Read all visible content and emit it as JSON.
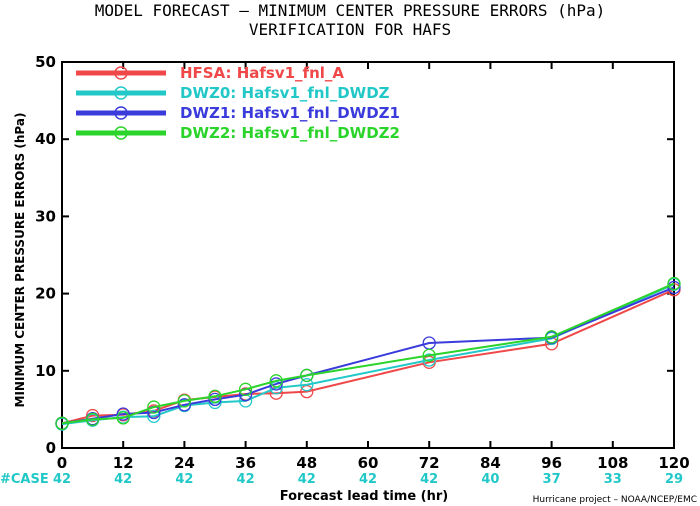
{
  "title_line1": "MODEL FORECAST – MINIMUM CENTER PRESSURE ERRORS (hPa)",
  "title_line2": "VERIFICATION FOR HAFS",
  "credit": "Hurricane project – NOAA/NCEP/EMC",
  "case_label": "#CASE",
  "chart_data": {
    "type": "line",
    "xlabel": "Forecast lead time (hr)",
    "ylabel": "MINIMUM CENTER PRESSURE ERRORS (hPa)",
    "xlim": [
      0,
      120
    ],
    "ylim": [
      0,
      50
    ],
    "xticks": [
      0,
      12,
      24,
      36,
      48,
      60,
      72,
      84,
      96,
      108,
      120
    ],
    "yticks": [
      0,
      10,
      20,
      30,
      40,
      50
    ],
    "grid": false,
    "legend_position": "top-left",
    "case_counts": [
      {
        "x": 0,
        "n": "42"
      },
      {
        "x": 12,
        "n": "42"
      },
      {
        "x": 24,
        "n": "42"
      },
      {
        "x": 36,
        "n": "42"
      },
      {
        "x": 48,
        "n": "42"
      },
      {
        "x": 60,
        "n": "42"
      },
      {
        "x": 72,
        "n": "42"
      },
      {
        "x": 84,
        "n": "40"
      },
      {
        "x": 96,
        "n": "37"
      },
      {
        "x": 108,
        "n": "33"
      },
      {
        "x": 120,
        "n": "29"
      }
    ],
    "series": [
      {
        "name": "HFSA: Hafsv1_fnl_A",
        "color": "#f04848",
        "points": [
          [
            0,
            3.2
          ],
          [
            6,
            4.2
          ],
          [
            12,
            4.3
          ],
          [
            18,
            4.8
          ],
          [
            24,
            6.2
          ],
          [
            30,
            6.6
          ],
          [
            36,
            7.0
          ],
          [
            42,
            7.1
          ],
          [
            48,
            7.3
          ],
          [
            72,
            11.1
          ],
          [
            96,
            13.5
          ],
          [
            120,
            20.5
          ]
        ]
      },
      {
        "name": "DWZ0: Hafsv1_fnl_DWDZ",
        "color": "#22c8c8",
        "points": [
          [
            0,
            3.1
          ],
          [
            6,
            3.6
          ],
          [
            12,
            4.0
          ],
          [
            18,
            4.1
          ],
          [
            24,
            5.5
          ],
          [
            30,
            5.9
          ],
          [
            36,
            6.1
          ],
          [
            42,
            7.8
          ],
          [
            48,
            8.2
          ],
          [
            72,
            11.4
          ],
          [
            96,
            14.2
          ],
          [
            120,
            21.2
          ]
        ]
      },
      {
        "name": "DWZ1: Hafsv1_fnl_DWDZ1",
        "color": "#3b3bdc",
        "points": [
          [
            0,
            3.2
          ],
          [
            6,
            3.8
          ],
          [
            12,
            4.4
          ],
          [
            18,
            4.6
          ],
          [
            24,
            5.6
          ],
          [
            30,
            6.3
          ],
          [
            36,
            6.9
          ],
          [
            42,
            8.3
          ],
          [
            48,
            9.4
          ],
          [
            72,
            13.6
          ],
          [
            96,
            14.3
          ],
          [
            120,
            20.8
          ]
        ]
      },
      {
        "name": "DWZ2: Hafsv1_fnl_DWDZ2",
        "color": "#2ad42a",
        "points": [
          [
            0,
            3.2
          ],
          [
            6,
            3.7
          ],
          [
            12,
            3.9
          ],
          [
            18,
            5.3
          ],
          [
            24,
            6.1
          ],
          [
            30,
            6.7
          ],
          [
            36,
            7.6
          ],
          [
            42,
            8.7
          ],
          [
            48,
            9.4
          ],
          [
            72,
            12.0
          ],
          [
            96,
            14.4
          ],
          [
            120,
            21.3
          ]
        ]
      }
    ]
  }
}
